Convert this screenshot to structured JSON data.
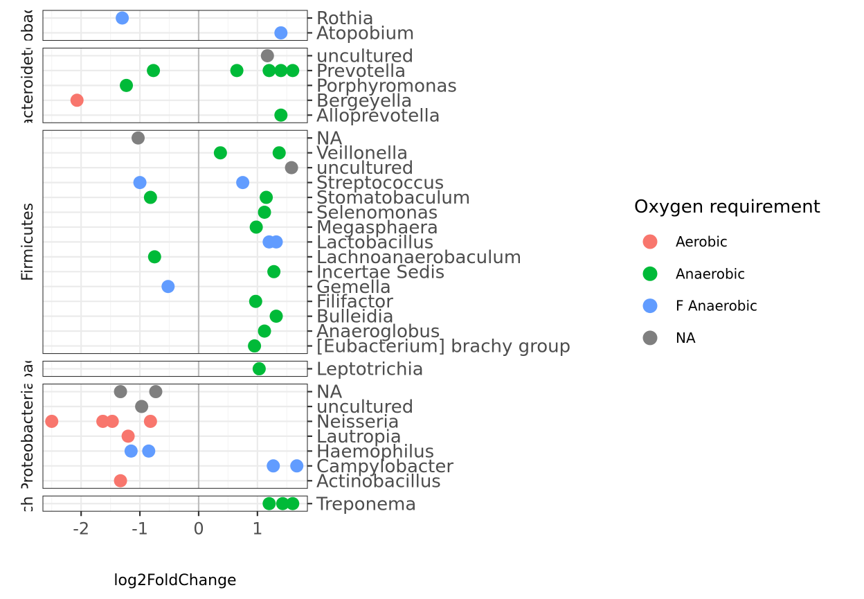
{
  "chart_data": {
    "type": "scatter",
    "xlabel": "log2FoldChange",
    "xlim": [
      -2.65,
      1.85
    ],
    "x_ticks": [
      -2,
      -1,
      0,
      1
    ],
    "x_tick_labels": [
      "-2",
      "-1",
      "0",
      "1"
    ],
    "reference_line_x": 0,
    "grid": true,
    "legend": {
      "title": "Oxygen requirement",
      "position": "right",
      "entries": [
        {
          "label": "Aerobic",
          "color": "#F8766D"
        },
        {
          "label": "Anaerobic",
          "color": "#00BA38"
        },
        {
          "label": "F Anaerobic",
          "color": "#619CFF"
        },
        {
          "label": "NA",
          "color": "#7F7F7F"
        }
      ]
    },
    "facets": [
      {
        "strip": "Actinobacteria",
        "categories": [
          "Atopobium",
          "Rothia"
        ],
        "points": [
          {
            "x": -1.3,
            "y": "Rothia",
            "group": "F Anaerobic"
          },
          {
            "x": 1.4,
            "y": "Atopobium",
            "group": "F Anaerobic"
          }
        ]
      },
      {
        "strip": "Bacteroidetes",
        "categories": [
          "Alloprevotella",
          "Bergeyella",
          "Porphyromonas",
          "Prevotella",
          "uncultured"
        ],
        "points": [
          {
            "x": 1.17,
            "y": "uncultured",
            "group": "NA"
          },
          {
            "x": -0.77,
            "y": "Prevotella",
            "group": "Anaerobic"
          },
          {
            "x": 0.65,
            "y": "Prevotella",
            "group": "Anaerobic"
          },
          {
            "x": 1.2,
            "y": "Prevotella",
            "group": "Anaerobic"
          },
          {
            "x": 1.4,
            "y": "Prevotella",
            "group": "Anaerobic"
          },
          {
            "x": 1.6,
            "y": "Prevotella",
            "group": "Anaerobic"
          },
          {
            "x": -1.23,
            "y": "Porphyromonas",
            "group": "Anaerobic"
          },
          {
            "x": -2.07,
            "y": "Bergeyella",
            "group": "Aerobic"
          },
          {
            "x": 1.4,
            "y": "Alloprevotella",
            "group": "Anaerobic"
          }
        ]
      },
      {
        "strip": "Firmicutes",
        "categories": [
          "[Eubacterium] brachy group",
          "Anaeroglobus",
          "Bulleidia",
          "Filifactor",
          "Gemella",
          "Incertae Sedis",
          "Lachnoanaerobaculum",
          "Lactobacillus",
          "Megasphaera",
          "Selenomonas",
          "Stomatobaculum",
          "Streptococcus",
          "uncultured",
          "Veillonella",
          "NA"
        ],
        "points": [
          {
            "x": -1.03,
            "y": "NA",
            "group": "NA"
          },
          {
            "x": 0.37,
            "y": "Veillonella",
            "group": "Anaerobic"
          },
          {
            "x": 1.37,
            "y": "Veillonella",
            "group": "Anaerobic"
          },
          {
            "x": 1.58,
            "y": "uncultured",
            "group": "NA"
          },
          {
            "x": -1.0,
            "y": "Streptococcus",
            "group": "F Anaerobic"
          },
          {
            "x": 0.75,
            "y": "Streptococcus",
            "group": "F Anaerobic"
          },
          {
            "x": -0.82,
            "y": "Stomatobaculum",
            "group": "Anaerobic"
          },
          {
            "x": 1.15,
            "y": "Stomatobaculum",
            "group": "Anaerobic"
          },
          {
            "x": 1.12,
            "y": "Selenomonas",
            "group": "Anaerobic"
          },
          {
            "x": 0.98,
            "y": "Megasphaera",
            "group": "Anaerobic"
          },
          {
            "x": 1.2,
            "y": "Lactobacillus",
            "group": "F Anaerobic"
          },
          {
            "x": 1.32,
            "y": "Lactobacillus",
            "group": "F Anaerobic"
          },
          {
            "x": -0.75,
            "y": "Lachnoanaerobaculum",
            "group": "Anaerobic"
          },
          {
            "x": 1.28,
            "y": "Incertae Sedis",
            "group": "Anaerobic"
          },
          {
            "x": -0.52,
            "y": "Gemella",
            "group": "F Anaerobic"
          },
          {
            "x": 0.97,
            "y": "Filifactor",
            "group": "Anaerobic"
          },
          {
            "x": 1.32,
            "y": "Bulleidia",
            "group": "Anaerobic"
          },
          {
            "x": 1.12,
            "y": "Anaeroglobus",
            "group": "Anaerobic"
          },
          {
            "x": 0.95,
            "y": "[Eubacterium] brachy group",
            "group": "Anaerobic"
          }
        ]
      },
      {
        "strip": "Fusobacteria",
        "categories": [
          "Leptotrichia"
        ],
        "points": [
          {
            "x": 1.03,
            "y": "Leptotrichia",
            "group": "Anaerobic"
          }
        ]
      },
      {
        "strip": "Proteobacteria",
        "categories": [
          "Actinobacillus",
          "Campylobacter",
          "Haemophilus",
          "Lautropia",
          "Neisseria",
          "uncultured",
          "NA"
        ],
        "points": [
          {
            "x": -1.33,
            "y": "NA",
            "group": "NA"
          },
          {
            "x": -0.73,
            "y": "NA",
            "group": "NA"
          },
          {
            "x": -0.97,
            "y": "uncultured",
            "group": "NA"
          },
          {
            "x": -2.5,
            "y": "Neisseria",
            "group": "Aerobic"
          },
          {
            "x": -1.63,
            "y": "Neisseria",
            "group": "Aerobic"
          },
          {
            "x": -1.47,
            "y": "Neisseria",
            "group": "Aerobic"
          },
          {
            "x": -0.82,
            "y": "Neisseria",
            "group": "Aerobic"
          },
          {
            "x": -1.2,
            "y": "Lautropia",
            "group": "Aerobic"
          },
          {
            "x": -1.15,
            "y": "Haemophilus",
            "group": "F Anaerobic"
          },
          {
            "x": -0.85,
            "y": "Haemophilus",
            "group": "F Anaerobic"
          },
          {
            "x": 1.27,
            "y": "Campylobacter",
            "group": "F Anaerobic"
          },
          {
            "x": 1.67,
            "y": "Campylobacter",
            "group": "F Anaerobic"
          },
          {
            "x": -1.33,
            "y": "Actinobacillus",
            "group": "Aerobic"
          }
        ]
      },
      {
        "strip": "Spirochaetes",
        "categories": [
          "Treponema"
        ],
        "points": [
          {
            "x": 1.2,
            "y": "Treponema",
            "group": "Anaerobic"
          },
          {
            "x": 1.43,
            "y": "Treponema",
            "group": "Anaerobic"
          },
          {
            "x": 1.6,
            "y": "Treponema",
            "group": "Anaerobic"
          }
        ]
      }
    ]
  }
}
